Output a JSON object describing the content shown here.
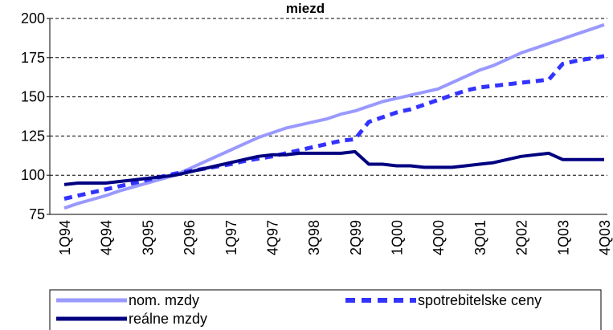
{
  "chart_data": {
    "type": "line",
    "title": "miezd",
    "categories": [
      "1Q94",
      null,
      null,
      "4Q94",
      null,
      null,
      "3Q95",
      null,
      null,
      "2Q96",
      null,
      null,
      "1Q97",
      null,
      null,
      "4Q97",
      null,
      null,
      "3Q98",
      null,
      null,
      "2Q99",
      null,
      null,
      "1Q00",
      null,
      null,
      "4Q00",
      null,
      null,
      "3Q01",
      null,
      null,
      "2Q02",
      null,
      null,
      "1Q03",
      null,
      null,
      "4Q03"
    ],
    "series": [
      {
        "name": "nom. mzdy",
        "color": "#9999ff",
        "dashed": false,
        "values": [
          79,
          82,
          84.5,
          87,
          90,
          92.5,
          95,
          97.5,
          100,
          104,
          108,
          112,
          116,
          120,
          124,
          127,
          130,
          132,
          134,
          136,
          139,
          141,
          144,
          147,
          149,
          151,
          153,
          155,
          159,
          163,
          167,
          170,
          174,
          178,
          181,
          184,
          187,
          190,
          193,
          196
        ]
      },
      {
        "name": "spotrebitelske ceny",
        "color": "#3333ff",
        "dashed": true,
        "values": [
          85,
          87,
          89,
          91,
          93,
          95,
          97,
          99,
          101,
          102.5,
          104,
          105.5,
          107,
          109,
          110.5,
          112,
          114,
          116,
          118,
          120,
          122,
          123,
          134,
          137,
          140,
          142,
          145,
          148,
          151,
          154,
          156,
          157,
          158,
          159,
          160,
          161,
          171,
          173,
          174.5,
          176
        ]
      },
      {
        "name": "reálne mzdy",
        "color": "#000080",
        "dashed": false,
        "values": [
          94,
          95,
          95,
          95,
          96,
          97,
          98,
          99,
          100,
          102,
          104,
          106,
          108,
          110,
          112,
          113,
          113,
          114,
          114,
          114,
          114,
          115,
          107,
          107,
          106,
          106,
          105,
          105,
          105,
          106,
          107,
          108,
          110,
          112,
          113,
          114,
          110,
          110,
          110,
          110
        ]
      }
    ],
    "ylim": [
      75,
      200
    ],
    "yticks": [
      75,
      100,
      125,
      150,
      175,
      200
    ],
    "grid": true,
    "legend": "bottom"
  }
}
